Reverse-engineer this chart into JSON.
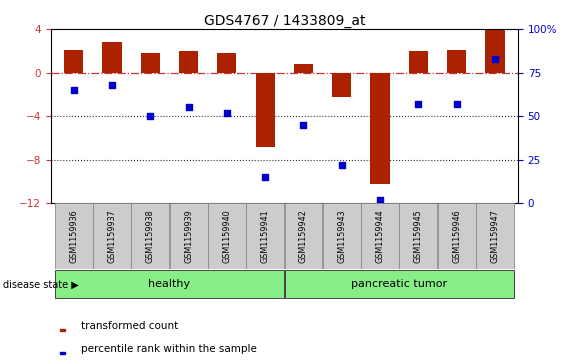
{
  "title": "GDS4767 / 1433809_at",
  "samples": [
    "GSM1159936",
    "GSM1159937",
    "GSM1159938",
    "GSM1159939",
    "GSM1159940",
    "GSM1159941",
    "GSM1159942",
    "GSM1159943",
    "GSM1159944",
    "GSM1159945",
    "GSM1159946",
    "GSM1159947"
  ],
  "bar_values": [
    2.1,
    2.8,
    1.8,
    2.0,
    1.8,
    -6.8,
    0.8,
    -2.2,
    -10.2,
    2.0,
    2.1,
    3.9
  ],
  "dot_values_pct": [
    65,
    68,
    50,
    55,
    52,
    15,
    45,
    22,
    2,
    57,
    57,
    83
  ],
  "ylim_left": [
    -12,
    4
  ],
  "ylim_right": [
    0,
    100
  ],
  "yticks_left": [
    -12,
    -8,
    -4,
    0,
    4
  ],
  "yticks_right": [
    0,
    25,
    50,
    75,
    100
  ],
  "bar_color": "#aa2200",
  "dot_color": "#0000cc",
  "hline_color": "#cc3333",
  "dotted_line_color": "#333333",
  "group_healthy_label": "healthy",
  "group_tumor_label": "pancreatic tumor",
  "group_bg_color": "#88ee88",
  "disease_state_label": "disease state",
  "legend_bar_label": "transformed count",
  "legend_dot_label": "percentile rank within the sample",
  "xticklabel_color": "#333333",
  "bg_plot": "#ffffff",
  "ytick_left_color": "#cc3333",
  "ytick_right_color": "#0000cc",
  "gray_box_color": "#cccccc"
}
